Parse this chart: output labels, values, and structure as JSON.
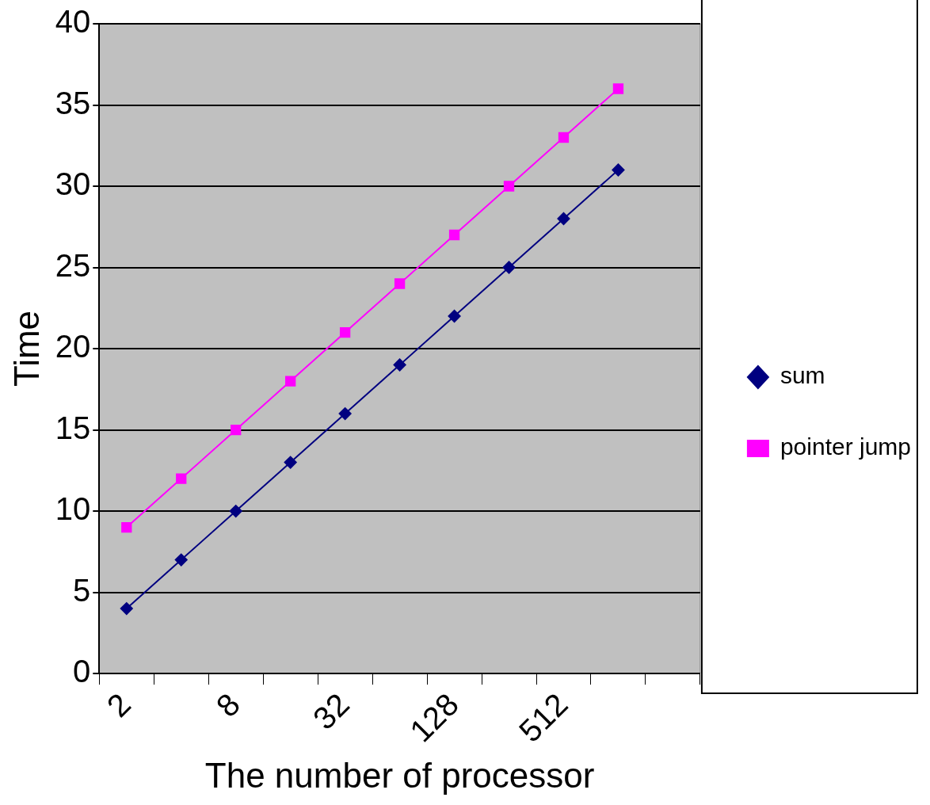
{
  "chart_data": {
    "type": "line",
    "xlabel": "The number of processor",
    "ylabel": "Time",
    "categories": [
      "2",
      null,
      "8",
      null,
      "32",
      null,
      "128",
      null,
      "512",
      null,
      null
    ],
    "series": [
      {
        "name": "sum",
        "color": "#000080",
        "marker": "diamond",
        "values": [
          4,
          7,
          10,
          13,
          16,
          19,
          22,
          25,
          28,
          31,
          null
        ]
      },
      {
        "name": "pointer jump",
        "color": "#ff00ff",
        "marker": "square",
        "values": [
          9,
          12,
          15,
          18,
          21,
          24,
          27,
          30,
          33,
          36,
          null
        ]
      }
    ],
    "ylim": [
      0,
      40
    ],
    "yticks": [
      0,
      5,
      10,
      15,
      20,
      25,
      30,
      35,
      40
    ],
    "grid": "y",
    "legend": "right",
    "line_style": "solid"
  }
}
